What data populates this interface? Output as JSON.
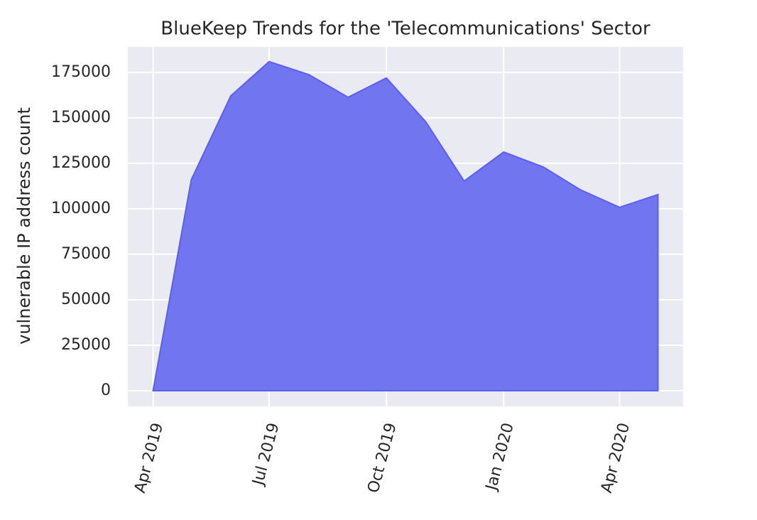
{
  "chart_data": {
    "type": "area",
    "title": "BlueKeep Trends for the 'Telecommunications' Sector",
    "y_label": "vulnerable IP address count",
    "x": [
      "2019-04",
      "2019-05",
      "2019-06",
      "2019-07",
      "2019-08",
      "2019-09",
      "2019-10",
      "2019-11",
      "2019-12",
      "2020-01",
      "2020-02",
      "2020-03",
      "2020-04",
      "2020-05"
    ],
    "values": [
      0,
      116000,
      162100,
      180900,
      173800,
      161300,
      171900,
      147700,
      115200,
      131200,
      123000,
      110500,
      100800,
      107800
    ],
    "color": "#7176f0",
    "edge_color": "#5a5ef2",
    "ylim": [
      -8600,
      189000
    ],
    "yticks": [
      0,
      25000,
      50000,
      75000,
      100000,
      125000,
      150000,
      175000
    ],
    "xticks": [
      {
        "value": "2019-04",
        "label": "Apr 2019"
      },
      {
        "value": "2019-07",
        "label": "Jul 2019"
      },
      {
        "value": "2019-10",
        "label": "Oct 2019"
      },
      {
        "value": "2020-01",
        "label": "Jan 2020"
      },
      {
        "value": "2020-04",
        "label": "Apr 2020"
      }
    ],
    "grid": true
  }
}
